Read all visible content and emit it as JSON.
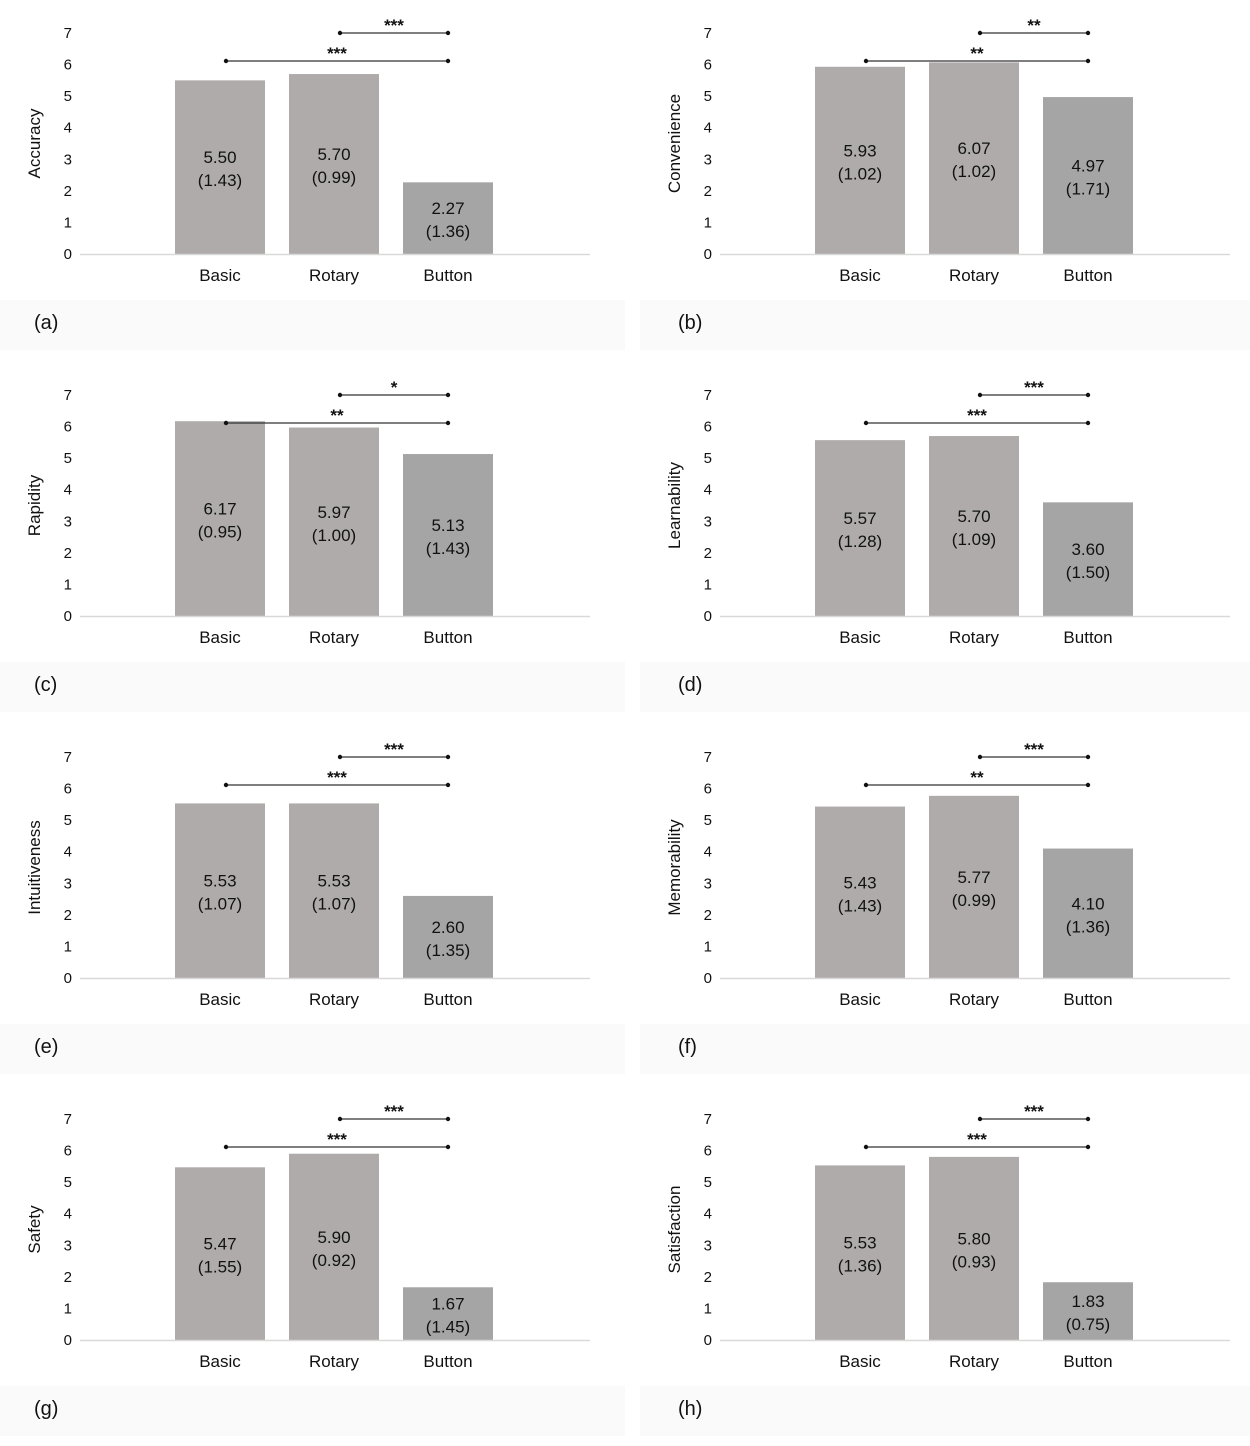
{
  "colors": {
    "bar_light": "#afabab",
    "bar_dark": "#a5a5a5",
    "axis_line": "#d9d9d9",
    "text": "#111111"
  },
  "chart_data": [
    {
      "type": "bar",
      "panel_label": "(a)",
      "ylabel": "Accuracy",
      "categories": [
        "Basic",
        "Rotary",
        "Button"
      ],
      "values": [
        5.5,
        5.7,
        2.27
      ],
      "value_labels": [
        "5.50",
        "5.70",
        "2.27"
      ],
      "sd_labels": [
        "(1.43)",
        "(0.99)",
        "(1.36)"
      ],
      "ylim": [
        0,
        7
      ],
      "yticks": [
        "0",
        "1",
        "2",
        "3",
        "4",
        "5",
        "6",
        "7"
      ],
      "grid": false,
      "significance": [
        {
          "from": "Rotary",
          "to": "Button",
          "label": "***"
        },
        {
          "from": "Basic",
          "to": "Button",
          "label": "***"
        }
      ]
    },
    {
      "type": "bar",
      "panel_label": "(b)",
      "ylabel": "Convenience",
      "categories": [
        "Basic",
        "Rotary",
        "Button"
      ],
      "values": [
        5.93,
        6.07,
        4.97
      ],
      "value_labels": [
        "5.93",
        "6.07",
        "4.97"
      ],
      "sd_labels": [
        "(1.02)",
        "(1.02)",
        "(1.71)"
      ],
      "ylim": [
        0,
        7
      ],
      "yticks": [
        "0",
        "1",
        "2",
        "3",
        "4",
        "5",
        "6",
        "7"
      ],
      "grid": false,
      "significance": [
        {
          "from": "Rotary",
          "to": "Button",
          "label": "**"
        },
        {
          "from": "Basic",
          "to": "Button",
          "label": "**"
        }
      ]
    },
    {
      "type": "bar",
      "panel_label": "(c)",
      "ylabel": "Rapidity",
      "categories": [
        "Basic",
        "Rotary",
        "Button"
      ],
      "values": [
        6.17,
        5.97,
        5.13
      ],
      "value_labels": [
        "6.17",
        "5.97",
        "5.13"
      ],
      "sd_labels": [
        "(0.95)",
        "(1.00)",
        "(1.43)"
      ],
      "ylim": [
        0,
        7
      ],
      "yticks": [
        "0",
        "1",
        "2",
        "3",
        "4",
        "5",
        "6",
        "7"
      ],
      "grid": false,
      "significance": [
        {
          "from": "Rotary",
          "to": "Button",
          "label": "*"
        },
        {
          "from": "Basic",
          "to": "Button",
          "label": "**"
        }
      ]
    },
    {
      "type": "bar",
      "panel_label": "(d)",
      "ylabel": "Learnability",
      "categories": [
        "Basic",
        "Rotary",
        "Button"
      ],
      "values": [
        5.57,
        5.7,
        3.6
      ],
      "value_labels": [
        "5.57",
        "5.70",
        "3.60"
      ],
      "sd_labels": [
        "(1.28)",
        "(1.09)",
        "(1.50)"
      ],
      "ylim": [
        0,
        7
      ],
      "yticks": [
        "0",
        "1",
        "2",
        "3",
        "4",
        "5",
        "6",
        "7"
      ],
      "grid": false,
      "significance": [
        {
          "from": "Rotary",
          "to": "Button",
          "label": "***"
        },
        {
          "from": "Basic",
          "to": "Button",
          "label": "***"
        }
      ]
    },
    {
      "type": "bar",
      "panel_label": "(e)",
      "ylabel": "Intuitiveness",
      "categories": [
        "Basic",
        "Rotary",
        "Button"
      ],
      "values": [
        5.53,
        5.53,
        2.6
      ],
      "value_labels": [
        "5.53",
        "5.53",
        "2.60"
      ],
      "sd_labels": [
        "(1.07)",
        "(1.07)",
        "(1.35)"
      ],
      "ylim": [
        0,
        7
      ],
      "yticks": [
        "0",
        "1",
        "2",
        "3",
        "4",
        "5",
        "6",
        "7"
      ],
      "grid": false,
      "significance": [
        {
          "from": "Rotary",
          "to": "Button",
          "label": "***"
        },
        {
          "from": "Basic",
          "to": "Button",
          "label": "***"
        }
      ]
    },
    {
      "type": "bar",
      "panel_label": "(f)",
      "ylabel": "Memorability",
      "categories": [
        "Basic",
        "Rotary",
        "Button"
      ],
      "values": [
        5.43,
        5.77,
        4.1
      ],
      "value_labels": [
        "5.43",
        "5.77",
        "4.10"
      ],
      "sd_labels": [
        "(1.43)",
        "(0.99)",
        "(1.36)"
      ],
      "ylim": [
        0,
        7
      ],
      "yticks": [
        "0",
        "1",
        "2",
        "3",
        "4",
        "5",
        "6",
        "7"
      ],
      "grid": false,
      "significance": [
        {
          "from": "Rotary",
          "to": "Button",
          "label": "***"
        },
        {
          "from": "Basic",
          "to": "Button",
          "label": "**"
        }
      ]
    },
    {
      "type": "bar",
      "panel_label": "(g)",
      "ylabel": "Safety",
      "categories": [
        "Basic",
        "Rotary",
        "Button"
      ],
      "values": [
        5.47,
        5.9,
        1.67
      ],
      "value_labels": [
        "5.47",
        "5.90",
        "1.67"
      ],
      "sd_labels": [
        "(1.55)",
        "(0.92)",
        "(1.45)"
      ],
      "ylim": [
        0,
        7
      ],
      "yticks": [
        "0",
        "1",
        "2",
        "3",
        "4",
        "5",
        "6",
        "7"
      ],
      "grid": false,
      "significance": [
        {
          "from": "Rotary",
          "to": "Button",
          "label": "***"
        },
        {
          "from": "Basic",
          "to": "Button",
          "label": "***"
        }
      ]
    },
    {
      "type": "bar",
      "panel_label": "(h)",
      "ylabel": "Satisfaction",
      "categories": [
        "Basic",
        "Rotary",
        "Button"
      ],
      "values": [
        5.53,
        5.8,
        1.83
      ],
      "value_labels": [
        "5.53",
        "5.80",
        "1.83"
      ],
      "sd_labels": [
        "(1.36)",
        "(0.93)",
        "(0.75)"
      ],
      "ylim": [
        0,
        7
      ],
      "yticks": [
        "0",
        "1",
        "2",
        "3",
        "4",
        "5",
        "6",
        "7"
      ],
      "grid": false,
      "significance": [
        {
          "from": "Rotary",
          "to": "Button",
          "label": "***"
        },
        {
          "from": "Basic",
          "to": "Button",
          "label": "***"
        }
      ]
    }
  ]
}
